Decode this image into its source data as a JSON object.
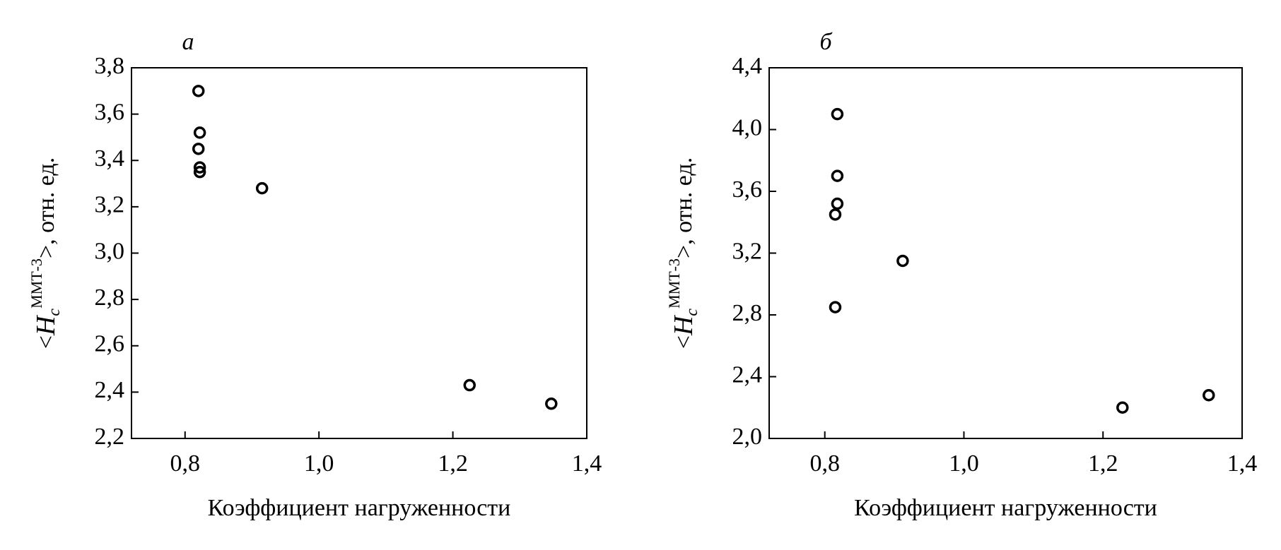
{
  "chart_data": [
    {
      "type": "scatter",
      "panel_label": "а",
      "ylabel_parts": [
        "<",
        "H",
        "c",
        "ММТ-3",
        ">, отн. ед."
      ],
      "xlabel": "Коэффициент нагруженности",
      "x": [
        0.82,
        0.822,
        0.82,
        0.822,
        0.822,
        0.915,
        1.225,
        1.347
      ],
      "values": [
        3.7,
        3.52,
        3.45,
        3.37,
        3.35,
        3.28,
        2.43,
        2.35
      ],
      "color": "#000000",
      "xlim": [
        0.72,
        1.4
      ],
      "xticks": [
        {
          "value": 0.8,
          "label": "0,8"
        },
        {
          "value": 1.0,
          "label": "1,0"
        },
        {
          "value": 1.2,
          "label": "1,2"
        },
        {
          "value": 1.4,
          "label": "1,4"
        }
      ],
      "ylim": [
        2.2,
        3.8
      ],
      "yticks": [
        {
          "value": 2.2,
          "label": "2,2"
        },
        {
          "value": 2.4,
          "label": "2,4"
        },
        {
          "value": 2.6,
          "label": "2,6"
        },
        {
          "value": 2.8,
          "label": "2,8"
        },
        {
          "value": 3.0,
          "label": "3,0"
        },
        {
          "value": 3.2,
          "label": "3,2"
        },
        {
          "value": 3.4,
          "label": "3,4"
        },
        {
          "value": 3.6,
          "label": "3,6"
        },
        {
          "value": 3.8,
          "label": "3,8"
        }
      ]
    },
    {
      "type": "scatter",
      "panel_label": "б",
      "ylabel_parts": [
        "<",
        "H",
        "c",
        "ММТ-3",
        ">, отн. ед."
      ],
      "xlabel": "Коэффициент нагруженности",
      "x": [
        0.818,
        0.818,
        0.818,
        0.815,
        0.815,
        0.912,
        1.228,
        1.352
      ],
      "values": [
        4.1,
        3.7,
        3.52,
        3.45,
        2.85,
        3.15,
        2.2,
        2.28
      ],
      "color": "#000000",
      "xlim": [
        0.72,
        1.4
      ],
      "xticks": [
        {
          "value": 0.8,
          "label": "0,8"
        },
        {
          "value": 1.0,
          "label": "1,0"
        },
        {
          "value": 1.2,
          "label": "1,2"
        },
        {
          "value": 1.4,
          "label": "1,4"
        }
      ],
      "ylim": [
        2.0,
        4.4
      ],
      "yticks": [
        {
          "value": 2.0,
          "label": "2,0"
        },
        {
          "value": 2.4,
          "label": "2,4"
        },
        {
          "value": 2.8,
          "label": "2,8"
        },
        {
          "value": 3.2,
          "label": "3,2"
        },
        {
          "value": 3.6,
          "label": "3,6"
        },
        {
          "value": 4.0,
          "label": "4,0"
        },
        {
          "value": 4.4,
          "label": "4,4"
        }
      ]
    }
  ]
}
